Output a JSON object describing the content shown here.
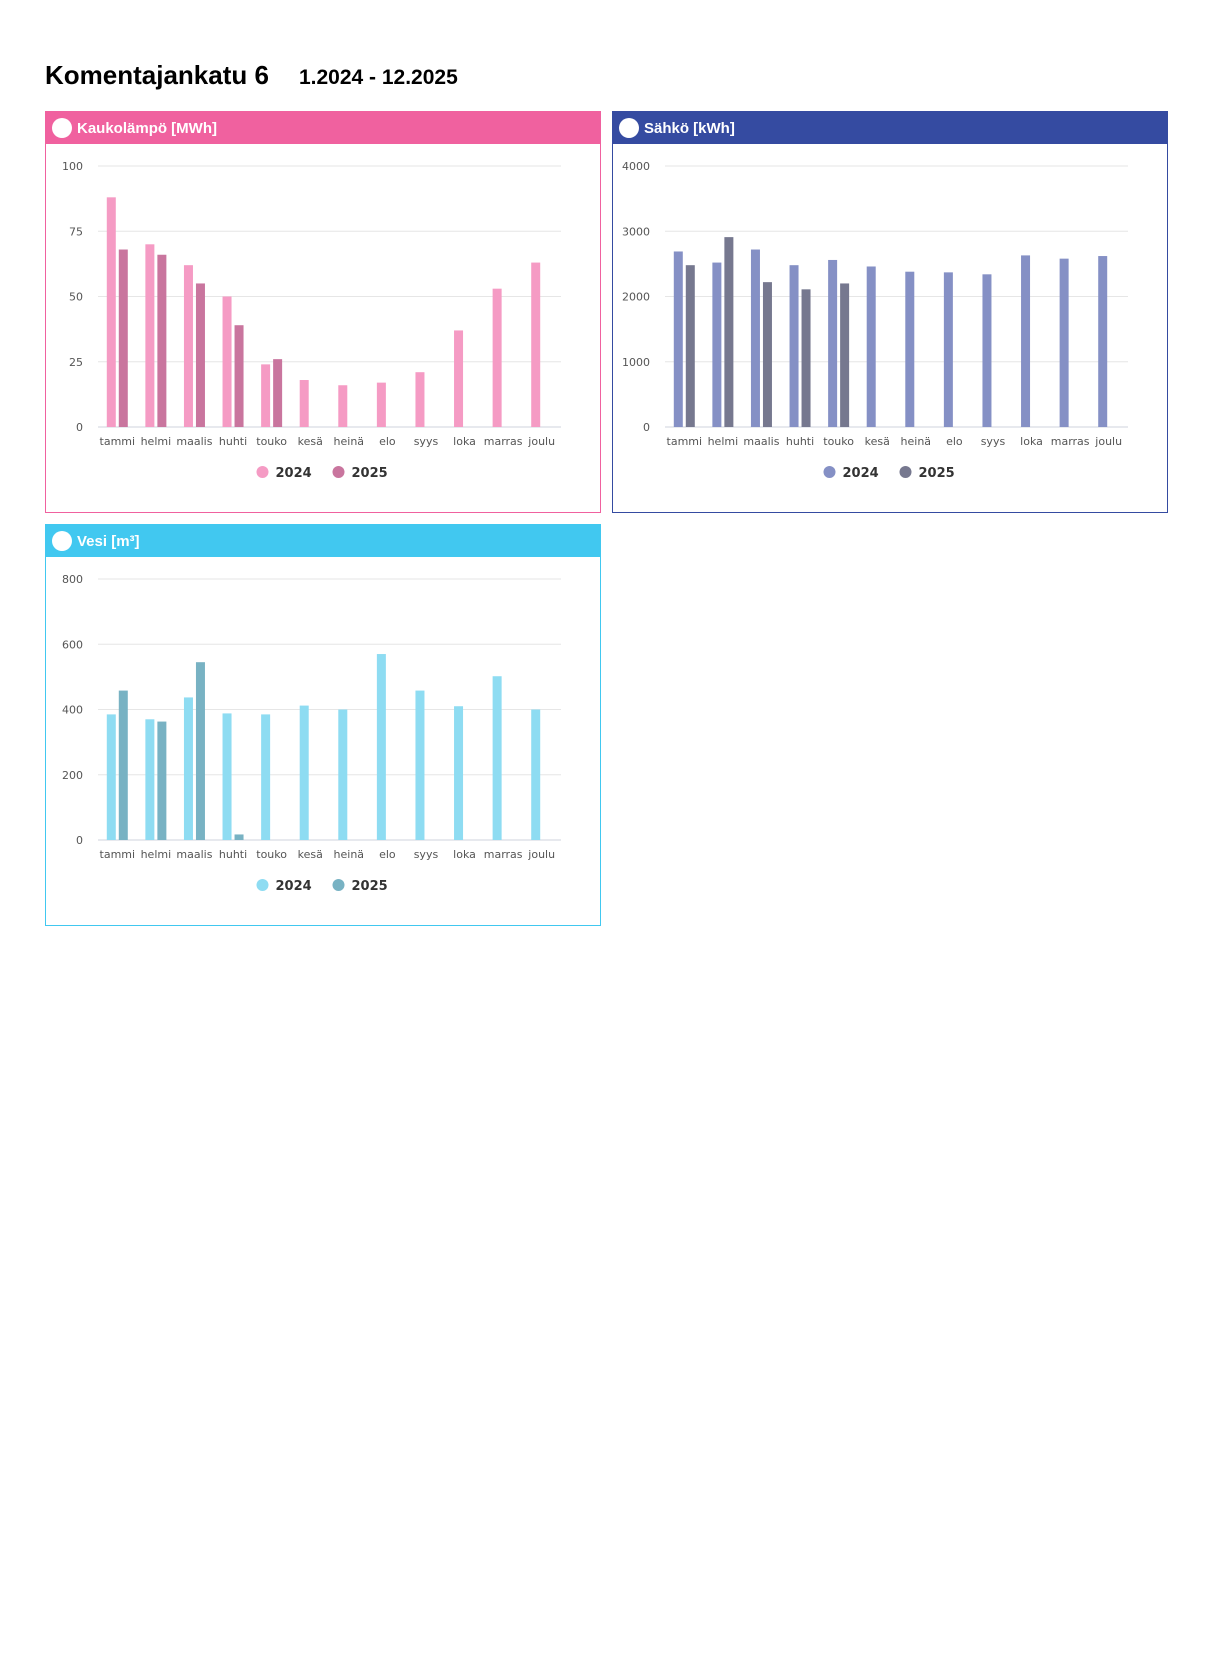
{
  "page": {
    "title": "Komentajankatu 6",
    "period": "1.2024 - 12.2025"
  },
  "panels": [
    {
      "title": "Kaukolämpö [MWh]",
      "header_color": "#f0619f",
      "border_color": "#f0619f"
    },
    {
      "title": "Sähkö [kWh]",
      "header_color": "#354ba1",
      "border_color": "#354ba1"
    },
    {
      "title": "Vesi [m³]",
      "header_color": "#41c8f0",
      "border_color": "#41c8f0"
    }
  ],
  "chart_data": [
    {
      "type": "bar",
      "categories": [
        "tammi",
        "helmi",
        "maalis",
        "huhti",
        "touko",
        "kesä",
        "heinä",
        "elo",
        "syys",
        "loka",
        "marras",
        "joulu"
      ],
      "ylim": [
        0,
        100
      ],
      "yticks": [
        0,
        25,
        50,
        75,
        100
      ],
      "grid": true,
      "legend": "bottom-center",
      "series": [
        {
          "name": "2024",
          "color": "#f59bc4",
          "values": [
            88,
            70,
            62,
            50,
            24,
            18,
            16,
            17,
            21,
            37,
            53,
            63
          ]
        },
        {
          "name": "2025",
          "color": "#c9759e",
          "values": [
            68,
            66,
            55,
            39,
            26,
            null,
            null,
            null,
            null,
            null,
            null,
            null
          ]
        }
      ]
    },
    {
      "type": "bar",
      "categories": [
        "tammi",
        "helmi",
        "maalis",
        "huhti",
        "touko",
        "kesä",
        "heinä",
        "elo",
        "syys",
        "loka",
        "marras",
        "joulu"
      ],
      "ylim": [
        0,
        4000
      ],
      "yticks": [
        0,
        1000,
        2000,
        3000,
        4000
      ],
      "grid": true,
      "legend": "bottom-center",
      "series": [
        {
          "name": "2024",
          "color": "#8590c5",
          "values": [
            2690,
            2520,
            2720,
            2480,
            2560,
            2460,
            2380,
            2370,
            2340,
            2630,
            2580,
            2620
          ]
        },
        {
          "name": "2025",
          "color": "#76788f",
          "values": [
            2480,
            2910,
            2220,
            2110,
            2200,
            null,
            null,
            null,
            null,
            null,
            null,
            null
          ]
        }
      ]
    },
    {
      "type": "bar",
      "categories": [
        "tammi",
        "helmi",
        "maalis",
        "huhti",
        "touko",
        "kesä",
        "heinä",
        "elo",
        "syys",
        "loka",
        "marras",
        "joulu"
      ],
      "ylim": [
        0,
        800
      ],
      "yticks": [
        0,
        200,
        400,
        600,
        800
      ],
      "grid": true,
      "legend": "bottom-center",
      "series": [
        {
          "name": "2024",
          "color": "#8edcf2",
          "values": [
            385,
            370,
            437,
            388,
            385,
            412,
            400,
            570,
            458,
            410,
            502,
            400
          ]
        },
        {
          "name": "2025",
          "color": "#78b2c3",
          "values": [
            458,
            363,
            545,
            17,
            null,
            null,
            null,
            null,
            null,
            null,
            null,
            null
          ]
        }
      ]
    }
  ]
}
